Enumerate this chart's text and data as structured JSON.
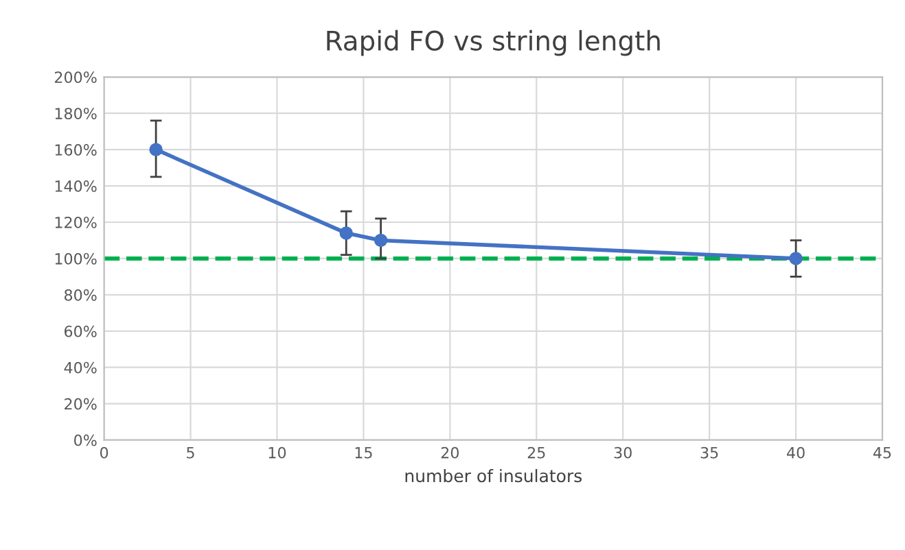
{
  "chart_data": {
    "type": "line",
    "title": "Rapid FO vs string length",
    "xlabel": "number of insulators",
    "x": [
      3,
      14,
      16,
      40
    ],
    "series": [
      {
        "color": "#4472c4",
        "values": [
          160,
          114,
          110,
          100
        ],
        "errors": [
          [
            145,
            176
          ],
          [
            102,
            126
          ],
          [
            100,
            122
          ],
          [
            90,
            110
          ]
        ]
      }
    ],
    "xlim": [
      0,
      45
    ],
    "xticks": [
      0,
      5,
      10,
      15,
      20,
      25,
      30,
      35,
      40,
      45
    ],
    "ylim": [
      0,
      200
    ],
    "yticks": [
      {
        "value": 0,
        "label": "0%"
      },
      {
        "value": 20,
        "label": "20%"
      },
      {
        "value": 40,
        "label": "40%"
      },
      {
        "value": 60,
        "label": "60%"
      },
      {
        "value": 80,
        "label": "80%"
      },
      {
        "value": 100,
        "label": "100%"
      },
      {
        "value": 120,
        "label": "120%"
      },
      {
        "value": 140,
        "label": "140%"
      },
      {
        "value": 160,
        "label": "160%"
      },
      {
        "value": 180,
        "label": "180%"
      },
      {
        "value": 200,
        "label": "200%"
      }
    ],
    "ref_lines": [
      {
        "axis": "y",
        "value": 100,
        "color": "#00b050",
        "line_style": "dashed"
      }
    ],
    "grid": true,
    "marker": "circle",
    "line_style": "solid"
  }
}
